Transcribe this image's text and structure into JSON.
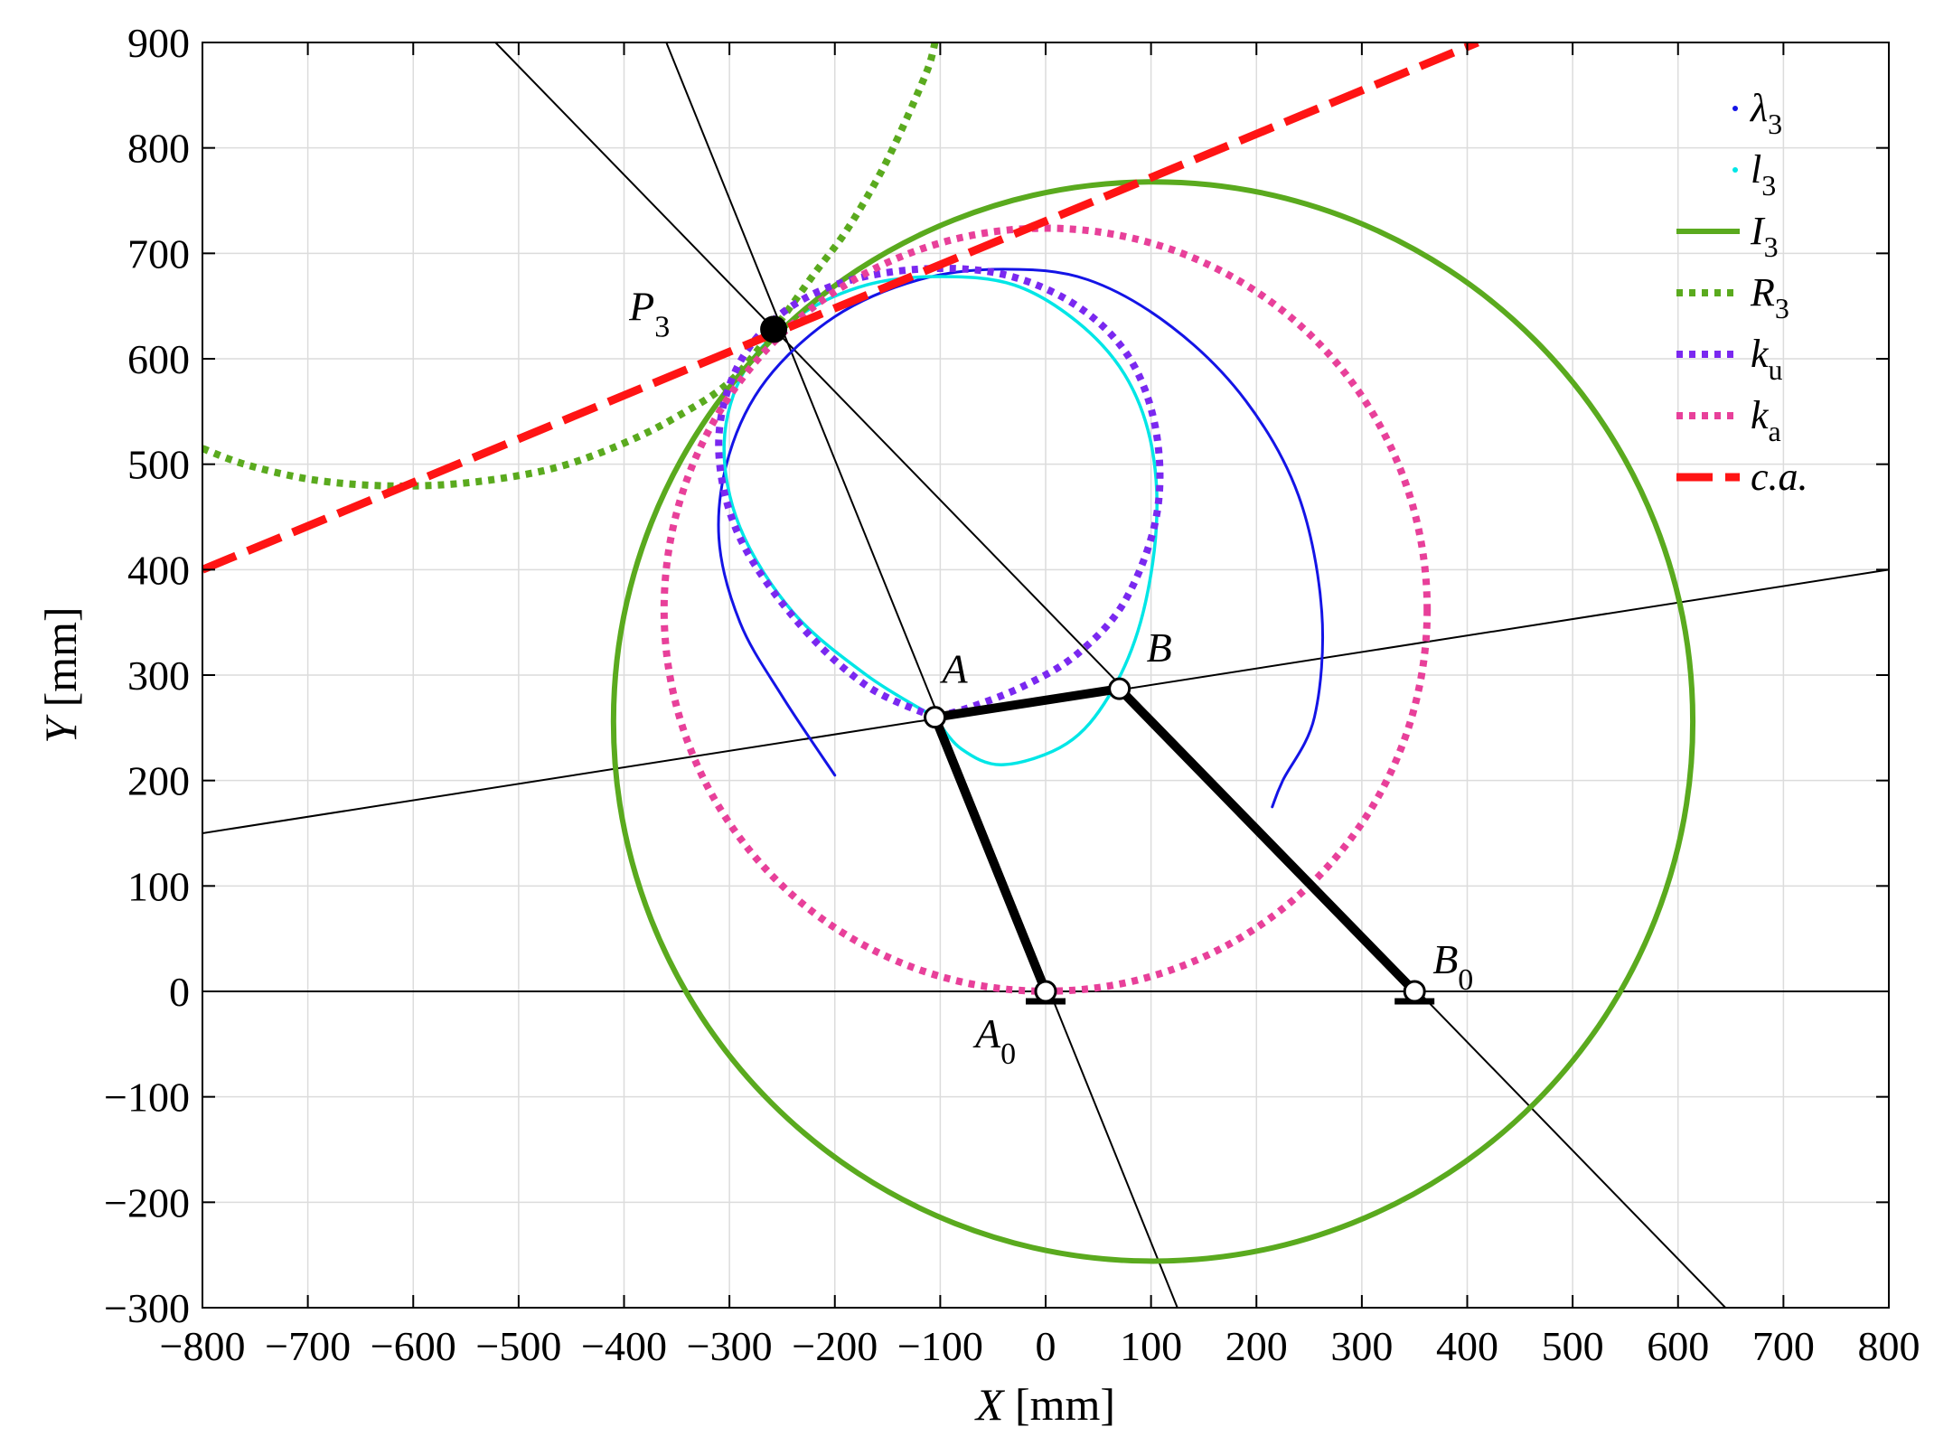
{
  "chart_data": {
    "type": "line",
    "xlabel": {
      "var": "X",
      "unit": " [mm]"
    },
    "ylabel": {
      "var": "Y",
      "unit": " [mm]"
    },
    "xlim": [
      -800,
      800
    ],
    "ylim": [
      -300,
      900
    ],
    "xticks": [
      -800,
      -700,
      -600,
      -500,
      -400,
      -300,
      -200,
      -100,
      0,
      100,
      200,
      300,
      400,
      500,
      600,
      700,
      800
    ],
    "yticks": [
      -300,
      -200,
      -100,
      0,
      100,
      200,
      300,
      400,
      500,
      600,
      700,
      800,
      900
    ],
    "grid": true,
    "legend_position": "top-right",
    "points": [
      {
        "name": "A0",
        "main": "A",
        "sub": "0",
        "x": 0,
        "y": 0
      },
      {
        "name": "B0",
        "main": "B",
        "sub": "0",
        "x": 350,
        "y": 0
      },
      {
        "name": "A",
        "main": "A",
        "sub": "",
        "x": -105,
        "y": 260
      },
      {
        "name": "B",
        "main": "B",
        "sub": "",
        "x": 70,
        "y": 287
      },
      {
        "name": "P3",
        "main": "P",
        "sub": "3",
        "x": -258,
        "y": 628
      }
    ],
    "links": [
      {
        "name": "A0-A",
        "from": [
          0,
          0
        ],
        "to": [
          -105,
          260
        ]
      },
      {
        "name": "A-B",
        "from": [
          -105,
          260
        ],
        "to": [
          70,
          287
        ]
      },
      {
        "name": "B-B0",
        "from": [
          70,
          287
        ],
        "to": [
          350,
          0
        ]
      }
    ],
    "lines": [
      {
        "name": "y-zero-line",
        "from": [
          -800,
          0
        ],
        "to": [
          800,
          0
        ]
      },
      {
        "name": "line-A0-A",
        "from": [
          125,
          -300
        ],
        "to": [
          -372,
          930
        ]
      },
      {
        "name": "line-A-B",
        "from": [
          -800,
          150
        ],
        "to": [
          800,
          400
        ]
      },
      {
        "name": "line-B-B0",
        "from": [
          -522,
          900
        ],
        "to": [
          645,
          -300
        ]
      }
    ],
    "series": [
      {
        "name": "λ",
        "sub": "3",
        "color": "#1414e6",
        "style": "solid-thin",
        "x": [
          -200,
          -250,
          -290,
          -310,
          -300,
          -265,
          -200,
          -120,
          -40,
          40,
          120,
          190,
          240,
          262,
          255,
          225,
          215
        ],
        "y": [
          205,
          280,
          350,
          430,
          510,
          580,
          640,
          675,
          685,
          675,
          630,
          560,
          470,
          360,
          260,
          200,
          175
        ]
      },
      {
        "name": "l",
        "sub": "3",
        "color": "#00e6e6",
        "style": "solid",
        "x": [
          -105,
          -170,
          -240,
          -290,
          -305,
          -285,
          -235,
          -170,
          -100,
          -30,
          30,
          75,
          100,
          105,
          90,
          60,
          20,
          -40,
          -80,
          -105
        ],
        "y": [
          260,
          300,
          360,
          440,
          520,
          590,
          640,
          670,
          678,
          670,
          635,
          585,
          520,
          440,
          350,
          280,
          235,
          215,
          230,
          260
        ]
      },
      {
        "name": "I",
        "sub": "3",
        "color": "#5aaa1e",
        "style": "solid-thick",
        "circle": {
          "cx": 102,
          "cy": 256,
          "r": 512
        }
      },
      {
        "name": "R",
        "sub": "3",
        "color": "#5aaa1e",
        "style": "dotted",
        "x": [
          -800,
          -760,
          -700,
          -640,
          -580,
          -520,
          -460,
          -400,
          -350,
          -300,
          -258,
          -220,
          -190,
          -160,
          -140,
          -120,
          -110,
          -105
        ],
        "y": [
          515,
          500,
          486,
          480,
          480,
          486,
          498,
          520,
          545,
          578,
          628,
          680,
          720,
          770,
          810,
          855,
          880,
          900
        ]
      },
      {
        "name": "k",
        "sub": "u",
        "color": "#7a28f0",
        "style": "dotted",
        "x": [
          -105,
          -170,
          -235,
          -290,
          -310,
          -298,
          -260,
          -200,
          -120,
          -40,
          30,
          80,
          105,
          105,
          75,
          30,
          -20,
          -70,
          -105
        ],
        "y": [
          260,
          290,
          350,
          430,
          510,
          580,
          635,
          670,
          685,
          680,
          650,
          600,
          530,
          450,
          370,
          320,
          290,
          270,
          260
        ]
      },
      {
        "name": "k",
        "sub": "a",
        "color": "#e8409a",
        "style": "dotted",
        "circle": {
          "cx": 0,
          "cy": 362,
          "r": 362
        }
      },
      {
        "name": "c.a.",
        "sub": "",
        "color": "#ff1414",
        "style": "dashed",
        "x": [
          -800,
          410
        ],
        "y": [
          400,
          900
        ]
      }
    ]
  }
}
